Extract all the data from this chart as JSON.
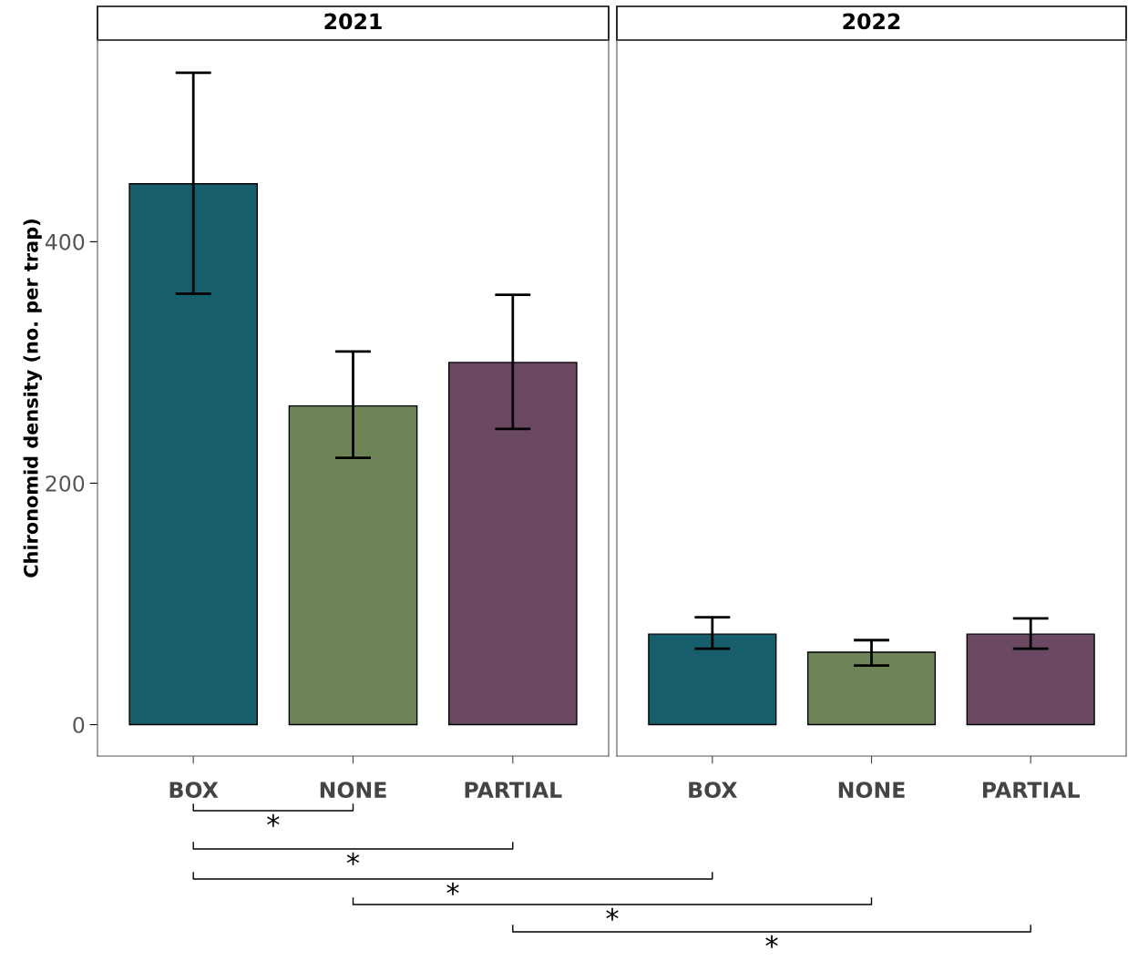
{
  "chart_data": [
    {
      "type": "bar",
      "title": "2021",
      "ylabel": "Chironomid density (no. per trap)",
      "categories": [
        "BOX",
        "NONE",
        "PARTIAL"
      ],
      "values": [
        448,
        264,
        300
      ],
      "colors": [
        "#165e6b",
        "#6e8457",
        "#6a4862"
      ],
      "errors": [
        [
          357,
          540
        ],
        [
          221,
          309
        ],
        [
          245,
          356
        ]
      ],
      "ylim": [
        -26,
        567
      ],
      "yticks": [
        0,
        200,
        400
      ],
      "grid": false,
      "annotations": [
        "*",
        "*",
        "*",
        "*",
        "*"
      ]
    },
    {
      "type": "bar",
      "title": "2022",
      "categories": [
        "BOX",
        "NONE",
        "PARTIAL"
      ],
      "values": [
        75,
        60,
        75
      ],
      "colors": [
        "#165e6b",
        "#6e8457",
        "#6a4862"
      ],
      "errors": [
        [
          63,
          89
        ],
        [
          49,
          70
        ],
        [
          63,
          88
        ]
      ],
      "ylim": [
        -26,
        567
      ],
      "yticks": [
        0,
        200,
        400
      ],
      "grid": false,
      "tick_labels": "x"
    }
  ]
}
